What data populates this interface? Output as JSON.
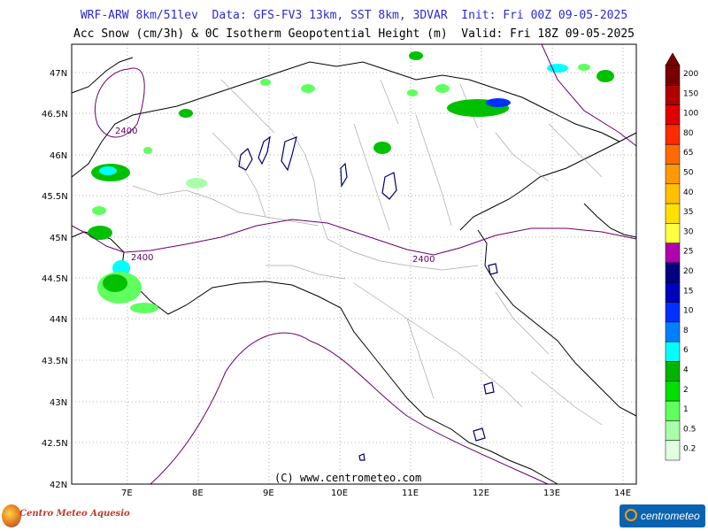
{
  "header": {
    "line1": "WRF-ARW 8km/51lev  Data: GFS-FV3 13km, SST 8km, 3DVAR  Init: Fri 00Z 09-05-2025",
    "line2": "Acc Snow (cm/3h) & 0C Isotherm Geopotential Height (m)  Valid: Fri 18Z 09-05-2025"
  },
  "axes": {
    "lat_labels": [
      "47N",
      "46.5N",
      "46N",
      "45.5N",
      "45N",
      "44.5N",
      "44N",
      "43.5N",
      "43N",
      "42.5N",
      "42N"
    ],
    "lon_labels": [
      "7E",
      "8E",
      "9E",
      "10E",
      "11E",
      "12E",
      "13E",
      "14E"
    ]
  },
  "contour_labels": [
    "2400",
    "2400",
    "2400"
  ],
  "colorbar": {
    "labels": [
      "200",
      "150",
      "100",
      "80",
      "65",
      "50",
      "40",
      "35",
      "30",
      "25",
      "20",
      "15",
      "10",
      "8",
      "6",
      "4",
      "2",
      "1",
      "0.5",
      "0.2"
    ],
    "colors": [
      "#7a0000",
      "#b00000",
      "#e00000",
      "#ff2a00",
      "#ff6a00",
      "#ff9a00",
      "#ffc000",
      "#ffe000",
      "#ffff40",
      "#b000b0",
      "#000080",
      "#0000c0",
      "#0030ff",
      "#0080ff",
      "#00ffff",
      "#00b400",
      "#00e000",
      "#60ff60",
      "#a8ffa8",
      "#e0ffe0"
    ]
  },
  "footer": {
    "copyright": "(C) www.centrometeo.com",
    "logo_left": "Centro Meteo Aquesio",
    "logo_right": "centrometeo"
  }
}
